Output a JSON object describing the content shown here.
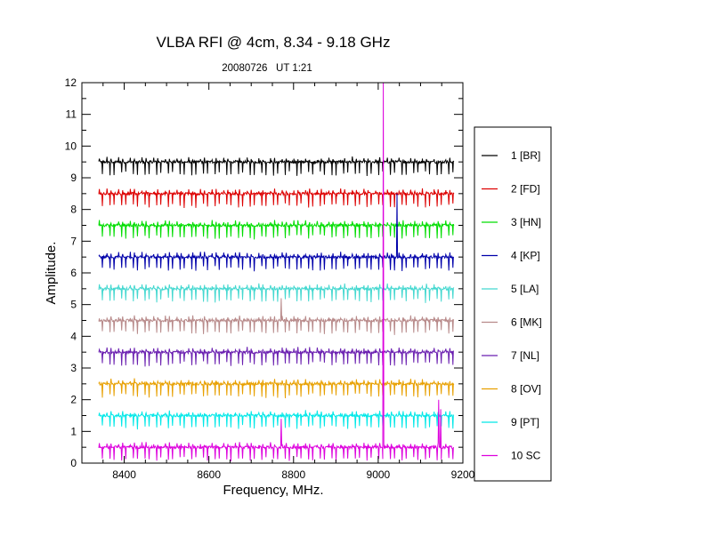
{
  "chart_data": {
    "type": "line",
    "title": "VLBA RFI @ 4cm, 8.34 - 9.18 GHz",
    "subtitle": "20080726   UT 1:21",
    "xlabel": "Frequency, MHz.",
    "ylabel": "Amplitude.",
    "xlim": [
      8300,
      9200
    ],
    "ylim": [
      0,
      12
    ],
    "x_range": [
      8340,
      9180
    ],
    "x_ticks": [
      8400,
      8600,
      8800,
      9000,
      9200
    ],
    "x_tick_labels": [
      "8400",
      "8600",
      "8800",
      "9000",
      "9200"
    ],
    "y_ticks": [
      0,
      1,
      2,
      3,
      4,
      5,
      6,
      7,
      8,
      9,
      10,
      11,
      12
    ],
    "y_tick_labels": [
      "0",
      "1",
      "2",
      "3",
      "4",
      "5",
      "6",
      "7",
      "8",
      "9",
      "10",
      "11",
      "12"
    ],
    "grid": false,
    "legend_position": "right",
    "series": [
      {
        "name": "1 [BR]",
        "color": "#000000",
        "baseline": 9.5
      },
      {
        "name": "2 [FD]",
        "color": "#dd0000",
        "baseline": 8.5
      },
      {
        "name": "3 [HN]",
        "color": "#00dd00",
        "baseline": 7.5
      },
      {
        "name": "4 [KP]",
        "color": "#0000aa",
        "baseline": 6.5
      },
      {
        "name": "5 [LA]",
        "color": "#44d8d0",
        "baseline": 5.5
      },
      {
        "name": "6 [MK]",
        "color": "#b88a8a",
        "baseline": 4.5
      },
      {
        "name": "7 [NL]",
        "color": "#6a1fb0",
        "baseline": 3.5
      },
      {
        "name": "8 [OV]",
        "color": "#e8a000",
        "baseline": 2.5
      },
      {
        "name": "9 [PT]",
        "color": "#00e8e8",
        "baseline": 1.5
      },
      {
        "name": "10 SC",
        "color": "#dd00dd",
        "baseline": 0.5
      }
    ],
    "spikes": [
      {
        "series": "10 SC",
        "x": 9012,
        "y": 12
      },
      {
        "series": "10 SC",
        "x": 9143,
        "y": 2.0
      },
      {
        "series": "10 SC",
        "x": 9148,
        "y": 1.7
      },
      {
        "series": "10 SC",
        "x": 8771,
        "y": 1.4
      },
      {
        "series": "4 [KP]",
        "x": 9045,
        "y": 8.5
      },
      {
        "series": "6 [MK]",
        "x": 8771,
        "y": 5.2
      }
    ]
  }
}
